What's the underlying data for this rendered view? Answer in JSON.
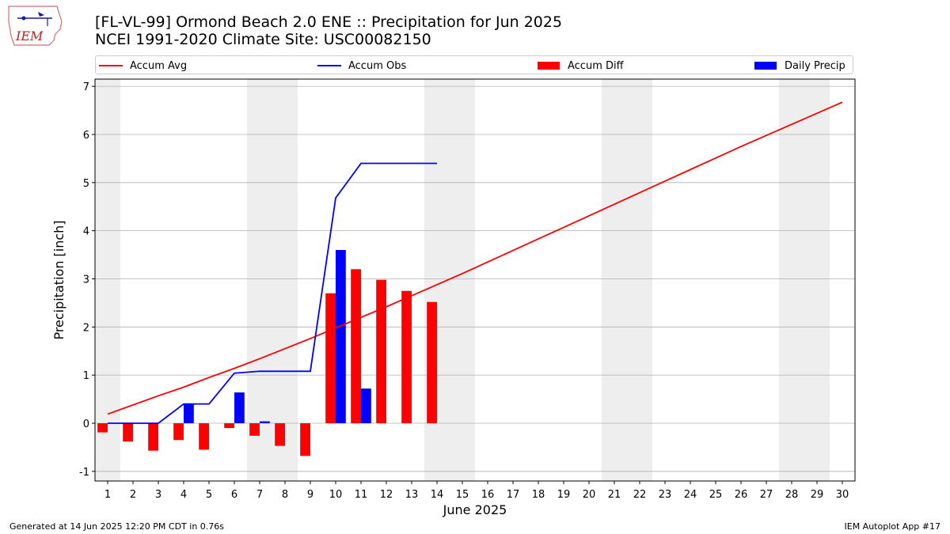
{
  "header": {
    "logo_text": "IEM",
    "title_line1": "[FL-VL-99] Ormond Beach 2.0 ENE :: Precipitation for Jun 2025",
    "title_line2": "NCEI 1991-2020 Climate Site: USC00082150"
  },
  "legend": {
    "accum_avg": "Accum Avg",
    "accum_obs": "Accum Obs",
    "accum_diff": "Accum Diff",
    "daily_precip": "Daily Precip"
  },
  "colors": {
    "accum_avg": "#ff0000",
    "accum_obs": "#0000ff",
    "accum_diff": "#ff0000",
    "daily_precip": "#0000ff",
    "weekend_shade": "#eeeeee",
    "grid": "#b0b0b0"
  },
  "footer": {
    "left": "Generated at 14 Jun 2025 12:20 PM CDT in 0.76s",
    "right": "IEM Autoplot App #17"
  },
  "chart_data": {
    "type": "bar",
    "xlabel": "June 2025",
    "ylabel": "Precipitation [inch]",
    "xlim": [
      0.5,
      30.5
    ],
    "ylim": [
      -1.2,
      7.15
    ],
    "yticks": [
      -1,
      0,
      1,
      2,
      3,
      4,
      5,
      6,
      7
    ],
    "grid": "horizontal",
    "legend_placement": "top",
    "shaded_weekends": [
      [
        0.5,
        1.5
      ],
      [
        6.5,
        8.5
      ],
      [
        13.5,
        15.5
      ],
      [
        20.5,
        22.5
      ],
      [
        27.5,
        29.5
      ]
    ],
    "x": [
      1,
      2,
      3,
      4,
      5,
      6,
      7,
      8,
      9,
      10,
      11,
      12,
      13,
      14,
      15,
      16,
      17,
      18,
      19,
      20,
      21,
      22,
      23,
      24,
      25,
      26,
      27,
      28,
      29,
      30
    ],
    "series": [
      {
        "name": "Accum Avg",
        "type": "line",
        "x": [
          1,
          2,
          3,
          4,
          5,
          6,
          7,
          8,
          9,
          10,
          11,
          12,
          13,
          14,
          15,
          16,
          17,
          18,
          19,
          20,
          21,
          22,
          23,
          24,
          25,
          26,
          27,
          28,
          29,
          30
        ],
        "values": [
          0.19,
          0.38,
          0.57,
          0.75,
          0.95,
          1.14,
          1.34,
          1.55,
          1.76,
          1.98,
          2.2,
          2.42,
          2.65,
          2.88,
          3.11,
          3.35,
          3.59,
          3.83,
          4.07,
          4.31,
          4.55,
          4.79,
          5.03,
          5.27,
          5.51,
          5.75,
          5.98,
          6.21,
          6.44,
          6.67
        ]
      },
      {
        "name": "Accum Obs",
        "type": "line",
        "x": [
          1,
          2,
          3,
          4,
          5,
          6,
          7,
          8,
          9,
          10,
          11,
          12,
          13,
          14
        ],
        "values": [
          0,
          0,
          0,
          0.4,
          0.4,
          1.04,
          1.08,
          1.08,
          1.08,
          4.68,
          5.4,
          5.4,
          5.4,
          5.4
        ]
      },
      {
        "name": "Accum Diff",
        "type": "bar",
        "x": [
          1,
          2,
          3,
          4,
          5,
          6,
          7,
          8,
          9,
          10,
          11,
          12,
          13,
          14
        ],
        "values": [
          -0.19,
          -0.38,
          -0.57,
          -0.35,
          -0.55,
          -0.1,
          -0.26,
          -0.47,
          -0.68,
          2.7,
          3.2,
          2.98,
          2.75,
          2.52
        ]
      },
      {
        "name": "Daily Precip",
        "type": "bar",
        "x": [
          1,
          2,
          3,
          4,
          5,
          6,
          7,
          8,
          9,
          10,
          11,
          12,
          13,
          14
        ],
        "values": [
          0,
          0,
          0,
          0.4,
          0,
          0.64,
          0.04,
          0,
          0,
          3.6,
          0.72,
          0,
          0,
          0
        ]
      }
    ]
  }
}
